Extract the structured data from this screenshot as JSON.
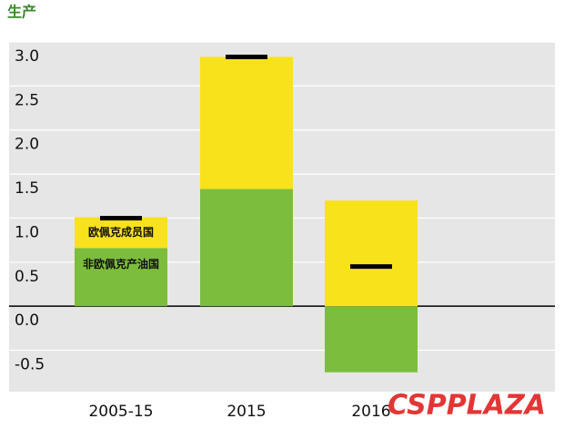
{
  "chart_data": {
    "type": "bar",
    "stacked": true,
    "title": "生产",
    "categories": [
      "2005-15",
      "2015",
      "2016"
    ],
    "series": [
      {
        "name": "非欧佩克产油国",
        "color": "#7dbd3e",
        "values": [
          0.66,
          1.33,
          -0.75
        ]
      },
      {
        "name": "欧佩克成员国",
        "color": "#f8e21c",
        "values": [
          0.35,
          1.5,
          1.2
        ]
      }
    ],
    "markers": {
      "color": "#000000",
      "values": [
        1.0,
        2.83,
        0.45
      ]
    },
    "ylim": [
      -0.97,
      3.0
    ],
    "yticks": [
      {
        "value": 3,
        "label": "3.0"
      },
      2.5,
      {
        "value": 2,
        "label": "2.0"
      },
      1.5,
      {
        "value": 1,
        "label": "1.0"
      },
      0.5,
      {
        "value": 0,
        "label": "0.0"
      },
      -0.5
    ],
    "grid": true,
    "watermark": "CSPPLAZA"
  }
}
